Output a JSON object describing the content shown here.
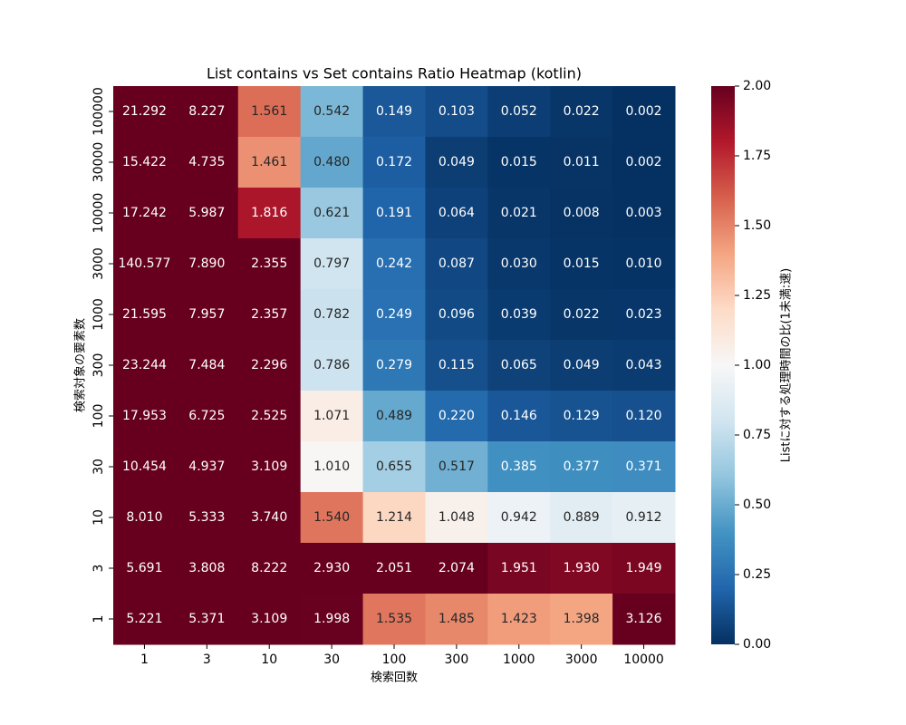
{
  "chart_data": {
    "type": "heatmap",
    "title": "List contains vs Set contains Ratio Heatmap (kotlin)",
    "xlabel": "検索回数",
    "ylabel": "検索対象の要素数",
    "x": [
      1,
      3,
      10,
      30,
      100,
      300,
      1000,
      3000,
      10000
    ],
    "y": [
      100000,
      30000,
      10000,
      3000,
      1000,
      300,
      100,
      30,
      10,
      3,
      1
    ],
    "values": [
      [
        21.292,
        8.227,
        1.561,
        0.542,
        0.149,
        0.103,
        0.052,
        0.022,
        0.002
      ],
      [
        15.422,
        4.735,
        1.461,
        0.48,
        0.172,
        0.049,
        0.015,
        0.011,
        0.002
      ],
      [
        17.242,
        5.987,
        1.816,
        0.621,
        0.191,
        0.064,
        0.021,
        0.008,
        0.003
      ],
      [
        140.577,
        7.89,
        2.355,
        0.797,
        0.242,
        0.087,
        0.03,
        0.015,
        0.01
      ],
      [
        21.595,
        7.957,
        2.357,
        0.782,
        0.249,
        0.096,
        0.039,
        0.022,
        0.023
      ],
      [
        23.244,
        7.484,
        2.296,
        0.786,
        0.279,
        0.115,
        0.065,
        0.049,
        0.043
      ],
      [
        17.953,
        6.725,
        2.525,
        1.071,
        0.489,
        0.22,
        0.146,
        0.129,
        0.12
      ],
      [
        10.454,
        4.937,
        3.109,
        1.01,
        0.655,
        0.517,
        0.385,
        0.377,
        0.371
      ],
      [
        8.01,
        5.333,
        3.74,
        1.54,
        1.214,
        1.048,
        0.942,
        0.889,
        0.912
      ],
      [
        5.691,
        3.808,
        8.222,
        2.93,
        2.051,
        2.074,
        1.951,
        1.93,
        1.949
      ],
      [
        5.221,
        5.371,
        3.109,
        1.998,
        1.535,
        1.485,
        1.423,
        1.398,
        3.126
      ]
    ],
    "value_labels": [
      [
        "21.292",
        "8.227",
        "1.561",
        "0.542",
        "0.149",
        "0.103",
        "0.052",
        "0.022",
        "0.002"
      ],
      [
        "15.422",
        "4.735",
        "1.461",
        "0.480",
        "0.172",
        "0.049",
        "0.015",
        "0.011",
        "0.002"
      ],
      [
        "17.242",
        "5.987",
        "1.816",
        "0.621",
        "0.191",
        "0.064",
        "0.021",
        "0.008",
        "0.003"
      ],
      [
        "140.577",
        "7.890",
        "2.355",
        "0.797",
        "0.242",
        "0.087",
        "0.030",
        "0.015",
        "0.010"
      ],
      [
        "21.595",
        "7.957",
        "2.357",
        "0.782",
        "0.249",
        "0.096",
        "0.039",
        "0.022",
        "0.023"
      ],
      [
        "23.244",
        "7.484",
        "2.296",
        "0.786",
        "0.279",
        "0.115",
        "0.065",
        "0.049",
        "0.043"
      ],
      [
        "17.953",
        "6.725",
        "2.525",
        "1.071",
        "0.489",
        "0.220",
        "0.146",
        "0.129",
        "0.120"
      ],
      [
        "10.454",
        "4.937",
        "3.109",
        "1.010",
        "0.655",
        "0.517",
        "0.385",
        "0.377",
        "0.371"
      ],
      [
        "8.010",
        "5.333",
        "3.740",
        "1.540",
        "1.214",
        "1.048",
        "0.942",
        "0.889",
        "0.912"
      ],
      [
        "5.691",
        "3.808",
        "8.222",
        "2.930",
        "2.051",
        "2.074",
        "1.951",
        "1.930",
        "1.949"
      ],
      [
        "5.221",
        "5.371",
        "3.109",
        "1.998",
        "1.535",
        "1.485",
        "1.423",
        "1.398",
        "3.126"
      ]
    ],
    "colormap": "RdBu_r",
    "clim": [
      0,
      2
    ],
    "cticks": [
      {
        "value": 0,
        "label": "0.00"
      },
      {
        "value": 0.25,
        "label": "0.25"
      },
      {
        "value": 0.5,
        "label": "0.50"
      },
      {
        "value": 0.75,
        "label": "0.75"
      },
      {
        "value": 1,
        "label": "1.00"
      },
      {
        "value": 1.25,
        "label": "1.25"
      },
      {
        "value": 1.5,
        "label": "1.50"
      },
      {
        "value": 1.75,
        "label": "1.75"
      },
      {
        "value": 2,
        "label": "2.00"
      }
    ],
    "colorbar_label": "Listに対する処理時間の比(1未満:速)"
  }
}
